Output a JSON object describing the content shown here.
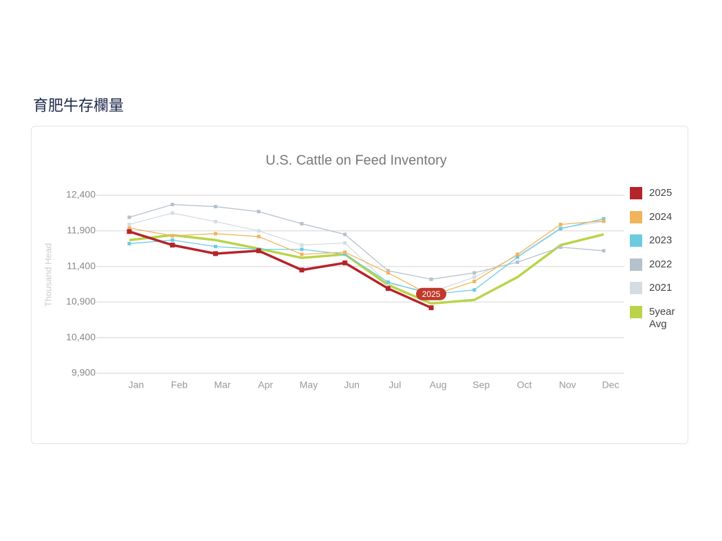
{
  "header": {
    "title": "育肥牛存欄量"
  },
  "chart_data": {
    "type": "line",
    "title": "U.S. Cattle on Feed Inventory",
    "y_label": "Thousand Head",
    "annotation": "2025",
    "categories": [
      "Jan",
      "Feb",
      "Mar",
      "Apr",
      "May",
      "Jun",
      "Jul",
      "Aug",
      "Sep",
      "Oct",
      "Nov",
      "Dec"
    ],
    "ylim": [
      9900,
      12400
    ],
    "yticks": [
      {
        "value": 9900,
        "label": "9,900"
      },
      {
        "value": 10400,
        "label": "10,400"
      },
      {
        "value": 10900,
        "label": "10,900"
      },
      {
        "value": 11400,
        "label": "11,400"
      },
      {
        "value": 11900,
        "label": "11,900"
      },
      {
        "value": 12400,
        "label": "12,400"
      }
    ],
    "grid": true,
    "legend": "right",
    "series": [
      {
        "name": "2025",
        "color": "#b5242a",
        "values": [
          11890,
          11700,
          11580,
          11620,
          11350,
          11450,
          11090,
          10820,
          null,
          null,
          null,
          null
        ]
      },
      {
        "name": "2024",
        "color": "#f0b45c",
        "values": [
          11940,
          11830,
          11860,
          11820,
          11570,
          11600,
          11310,
          10990,
          11190,
          11570,
          11990,
          12040
        ]
      },
      {
        "name": "2023",
        "color": "#6ccbe0",
        "values": [
          11720,
          11770,
          11680,
          11640,
          11640,
          11570,
          11180,
          11010,
          11070,
          11530,
          11930,
          12070
        ]
      },
      {
        "name": "2022",
        "color": "#b5c1cc",
        "values": [
          12090,
          12270,
          12240,
          12170,
          12000,
          11850,
          11340,
          11220,
          11310,
          11460,
          11670,
          11620
        ]
      },
      {
        "name": "2021",
        "color": "#d3dde3",
        "values": [
          11990,
          12150,
          12030,
          11900,
          11700,
          11730,
          11160,
          11040,
          11250,
          11550,
          11940,
          12030
        ]
      },
      {
        "name": "5year Avg",
        "color": "#b9d44a",
        "values": [
          11770,
          11840,
          11770,
          11650,
          11520,
          11570,
          11140,
          10880,
          10930,
          11250,
          11700,
          11850
        ]
      }
    ]
  }
}
